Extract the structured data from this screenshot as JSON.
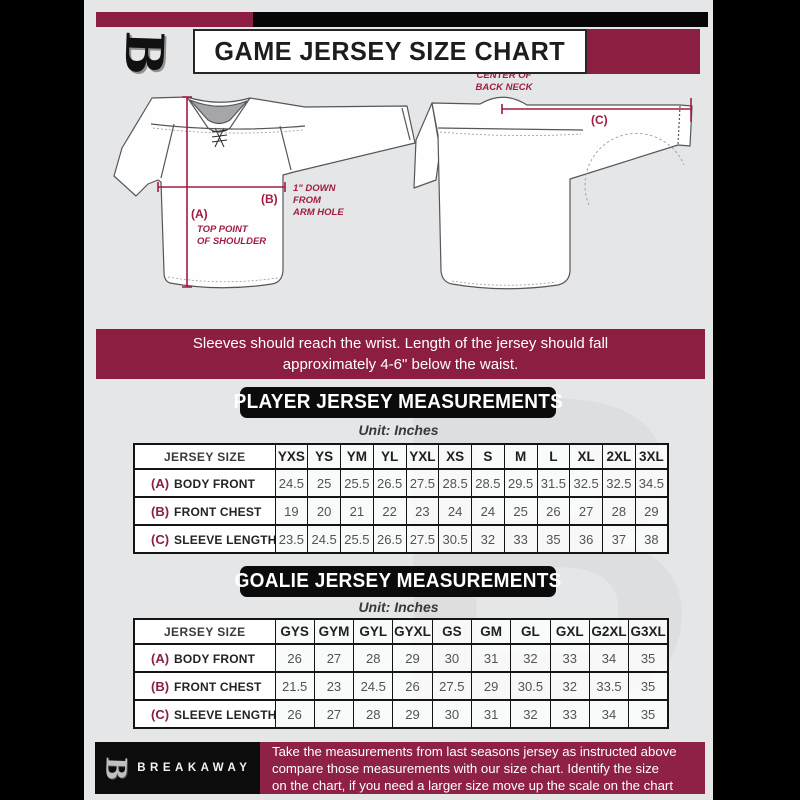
{
  "colors": {
    "accent": "#8B1E41",
    "measure_line": "#A11C40",
    "background": "#E5E6E7",
    "banner_black": "#0B0B0B"
  },
  "header": {
    "title": "GAME JERSEY SIZE CHART",
    "logo_letter": "B"
  },
  "diagram": {
    "front_view": {
      "a_key": "(A)",
      "a_note": [
        "TOP POINT",
        "OF SHOULDER"
      ],
      "b_key": "(B)",
      "b_note": [
        "1\" DOWN",
        "FROM",
        "ARM HOLE"
      ]
    },
    "back_view": {
      "c_key": "(C)",
      "c_note": [
        "CENTER OF",
        "BACK NECK"
      ]
    }
  },
  "banner": {
    "lines": [
      "Sleeves should reach the wrist. Length of the jersey should fall",
      "approximately 4-6\" below the waist."
    ]
  },
  "player_table": {
    "title": "PLAYER JERSEY MEASUREMENTS",
    "unit": "Unit: Inches",
    "header": "JERSEY SIZE",
    "sizes": [
      "YXS",
      "YS",
      "YM",
      "YL",
      "YXL",
      "XS",
      "S",
      "M",
      "L",
      "XL",
      "2XL",
      "3XL"
    ],
    "rows": [
      {
        "key": "(A)",
        "label": "BODY FRONT",
        "values": [
          "24.5",
          "25",
          "25.5",
          "26.5",
          "27.5",
          "28.5",
          "28.5",
          "29.5",
          "31.5",
          "32.5",
          "32.5",
          "34.5"
        ]
      },
      {
        "key": "(B)",
        "label": "FRONT CHEST",
        "values": [
          "19",
          "20",
          "21",
          "22",
          "23",
          "24",
          "24",
          "25",
          "26",
          "27",
          "28",
          "29"
        ]
      },
      {
        "key": "(C)",
        "label": "SLEEVE LENGTH",
        "values": [
          "23.5",
          "24.5",
          "25.5",
          "26.5",
          "27.5",
          "30.5",
          "32",
          "33",
          "35",
          "36",
          "37",
          "38"
        ]
      }
    ]
  },
  "goalie_table": {
    "title": "GOALIE JERSEY MEASUREMENTS",
    "unit": "Unit: Inches",
    "header": "JERSEY SIZE",
    "sizes": [
      "GYS",
      "GYM",
      "GYL",
      "GYXL",
      "GS",
      "GM",
      "GL",
      "GXL",
      "G2XL",
      "G3XL"
    ],
    "rows": [
      {
        "key": "(A)",
        "label": "BODY FRONT",
        "values": [
          "26",
          "27",
          "28",
          "29",
          "30",
          "31",
          "32",
          "33",
          "34",
          "35"
        ]
      },
      {
        "key": "(B)",
        "label": "FRONT CHEST",
        "values": [
          "21.5",
          "23",
          "24.5",
          "26",
          "27.5",
          "29",
          "30.5",
          "32",
          "33.5",
          "35"
        ]
      },
      {
        "key": "(C)",
        "label": "SLEEVE LENGTH",
        "values": [
          "26",
          "27",
          "28",
          "29",
          "30",
          "31",
          "32",
          "33",
          "34",
          "35"
        ]
      }
    ]
  },
  "footer": {
    "logo_letter": "B",
    "brand": "BREAKAWAY",
    "lines": [
      "Take the measurements from last seasons jersey as instructed above",
      "compare those measurements  with our size chart. Identify the size",
      "on the chart, if you need a larger size move up the scale on the chart"
    ]
  },
  "watermark": {
    "letter": "B"
  }
}
